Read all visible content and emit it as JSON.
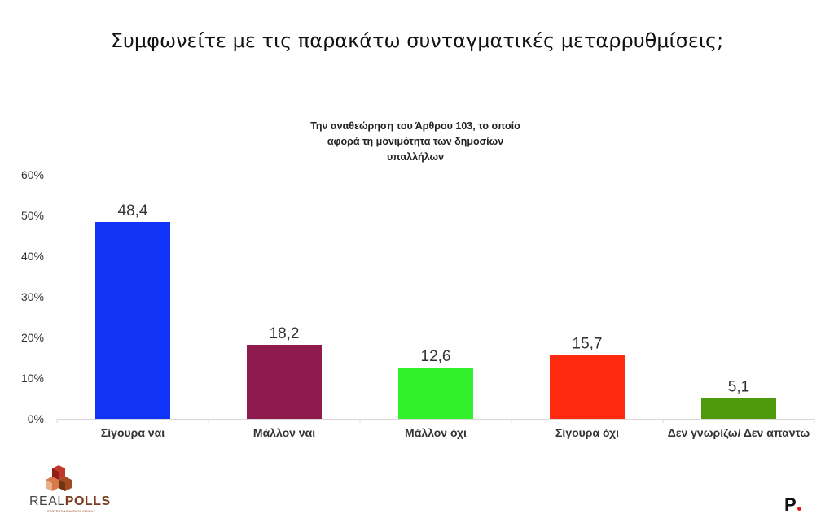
{
  "page": {
    "title": "Συμφωνείτε με τις παρακάτω συνταγματικές μεταρρυθμίσεις;"
  },
  "logo": {
    "name_prefix": "REAL",
    "name_bold": "POLLS",
    "tagline": "CONVERTING DATA TO INSIGHT"
  },
  "brand": {
    "letter": "P"
  },
  "chart_data": {
    "type": "bar",
    "title": "Την αναθεώρηση του Άρθρου 103, το οποίο αφορά τη μονιμότητα των δημοσίων υπαλλήλων",
    "title_lines": [
      "Την αναθεώρηση του Άρθρου 103, το οποίο",
      "αφορά τη μονιμότητα των δημοσίων",
      "υπαλλήλων"
    ],
    "categories": [
      "Σίγουρα ναι",
      "Μάλλον ναι",
      "Μάλλον όχι",
      "Σίγουρα όχι",
      "Δεν γνωρίζω/ Δεν απαντώ"
    ],
    "values": [
      48.4,
      18.2,
      12.6,
      15.7,
      5.1
    ],
    "value_labels": [
      "48,4",
      "18,2",
      "12,6",
      "15,7",
      "5,1"
    ],
    "colors": [
      "#1033f5",
      "#8f1a4e",
      "#33f02c",
      "#ff2a10",
      "#4e9a0c"
    ],
    "ylim": [
      0,
      60
    ],
    "yticks": [
      0,
      10,
      20,
      30,
      40,
      50,
      60
    ],
    "ytick_labels": [
      "0%",
      "10%",
      "20%",
      "30%",
      "40%",
      "50%",
      "60%"
    ],
    "grid": false
  }
}
